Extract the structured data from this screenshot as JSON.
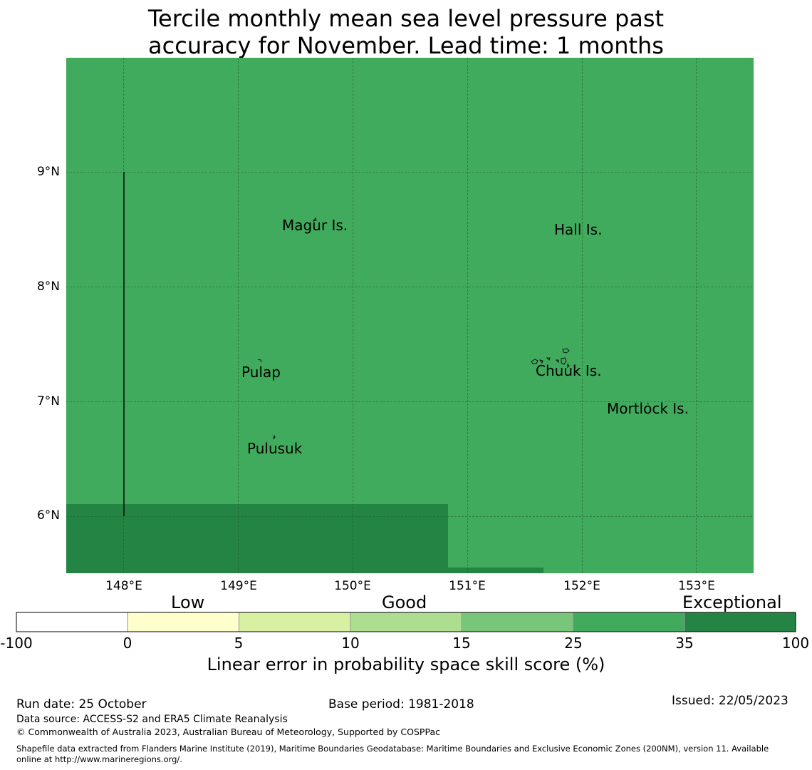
{
  "title_line1": "Tercile monthly mean sea level pressure past",
  "title_line2": "accuracy for November. Lead time: 1 months",
  "map": {
    "fill_color": "#41ab5d",
    "exceptional_color": "#238443",
    "lat_labels": [
      "9°N",
      "8°N",
      "7°N",
      "6°N"
    ],
    "lon_labels": [
      "148°E",
      "149°E",
      "150°E",
      "151°E",
      "152°E",
      "153°E"
    ],
    "places": [
      "Magur Is.",
      "Hall Is.",
      "Pulap",
      "Chuuk Is.",
      "Mortlock Is.",
      "Pulusuk"
    ]
  },
  "colorbar": {
    "categories": [
      "Low",
      "Good",
      "Exceptional"
    ],
    "ticks": [
      "-100",
      "0",
      "5",
      "10",
      "15",
      "25",
      "35",
      "100"
    ],
    "colors": [
      "#ffffff",
      "#ffffcc",
      "#d9f0a3",
      "#addd8e",
      "#78c679",
      "#41ab5d",
      "#238443"
    ],
    "label": "Linear error in probability space skill score (%)"
  },
  "footer": {
    "run_date": "Run date: 25 October",
    "base_period": "Base period: 1981-2018",
    "issued": "Issued: 22/05/2023",
    "data_source": "Data source: ACCESS-S2 and ERA5 Climate Reanalysis",
    "copyright": "© Commonwealth of Australia 2023, Australian Bureau of Meteorology, Supported by COSPPac",
    "shapefile_line1": "Shapefile data extracted from Flanders Marine Institute (2019), Maritime Boundaries Geodatabase: Maritime Boundaries and Exclusive Economic Zones (200NM), version 11. Available",
    "shapefile_line2": "online at http://www.marineregions.org/."
  }
}
